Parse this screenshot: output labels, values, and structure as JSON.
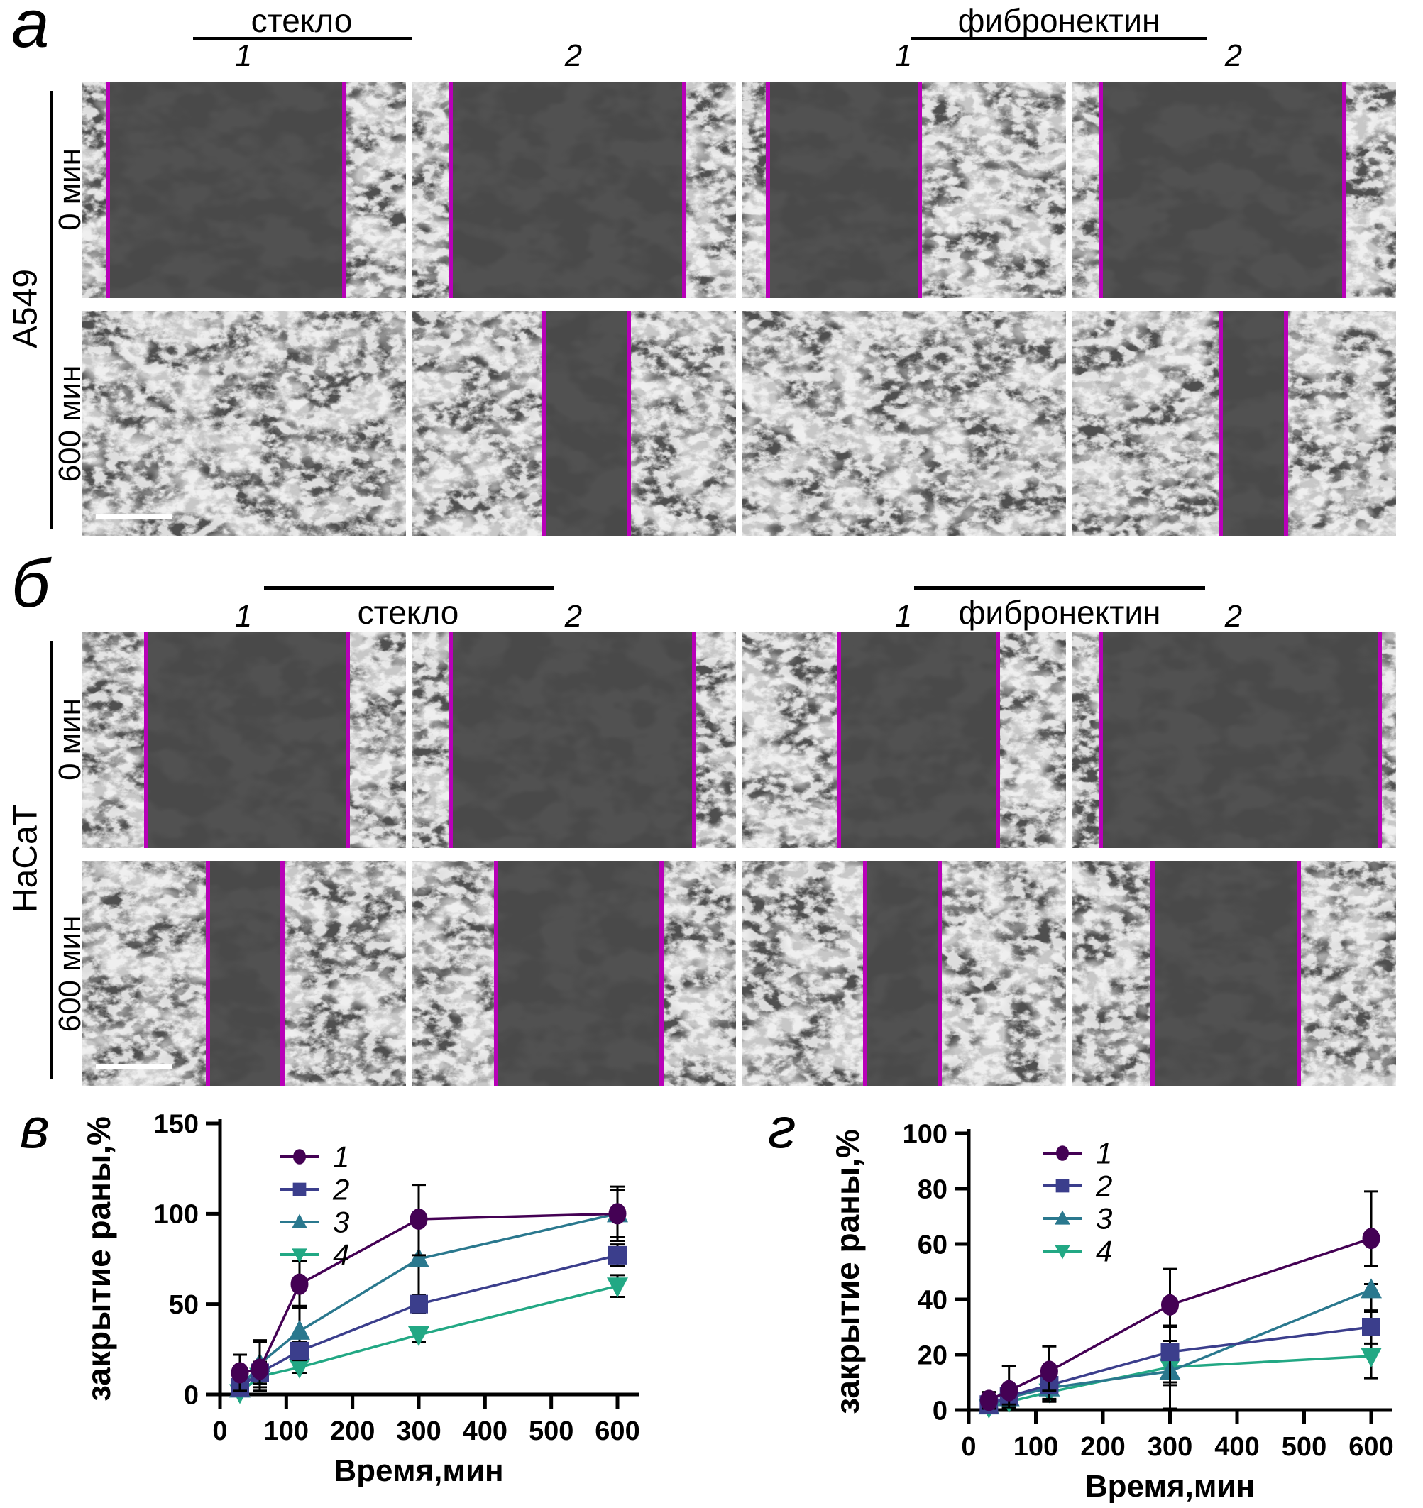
{
  "figure": {
    "panels": [
      {
        "id": "a",
        "label": "а",
        "cell_line": "A549",
        "groups": [
          {
            "label": "стекло"
          },
          {
            "label": "фибронектин"
          }
        ],
        "column_labels": [
          "1",
          "2",
          "1",
          "2"
        ],
        "row_labels": [
          "0 мин",
          "600 мин"
        ],
        "micrographs": [
          {
            "id": "a-glass-1-0min",
            "gap_pct": [
              8,
              81
            ],
            "scalebar": false
          },
          {
            "id": "a-glass-2-0min",
            "gap_pct": [
              12,
              84
            ],
            "scalebar": false
          },
          {
            "id": "a-fn-1-0min",
            "gap_pct": [
              8,
              55
            ],
            "scalebar": false
          },
          {
            "id": "a-fn-2-0min",
            "gap_pct": [
              9,
              84
            ],
            "scalebar": false
          },
          {
            "id": "a-glass-1-600min",
            "gap_pct": null,
            "scalebar": true
          },
          {
            "id": "a-glass-2-600min",
            "gap_pct": [
              41,
              67
            ],
            "scalebar": false
          },
          {
            "id": "a-fn-1-600min",
            "gap_pct": null,
            "scalebar": false
          },
          {
            "id": "a-fn-2-600min",
            "gap_pct": [
              46,
              66
            ],
            "scalebar": false
          }
        ]
      },
      {
        "id": "b",
        "label": "б",
        "cell_line": "HaCaT",
        "groups": [
          {
            "label": "стекло"
          },
          {
            "label": "фибронектин"
          }
        ],
        "column_labels": [
          "1",
          "2",
          "1",
          "2"
        ],
        "row_labels": [
          "0 мин",
          "600 мин"
        ],
        "micrographs": [
          {
            "id": "b-glass-1-0min",
            "gap_pct": [
              20,
              82
            ],
            "scalebar": false
          },
          {
            "id": "b-glass-2-0min",
            "gap_pct": [
              12,
              87
            ],
            "scalebar": false
          },
          {
            "id": "b-fn-1-0min",
            "gap_pct": [
              30,
              79
            ],
            "scalebar": false
          },
          {
            "id": "b-fn-2-0min",
            "gap_pct": [
              9,
              95
            ],
            "scalebar": false
          },
          {
            "id": "b-glass-1-600min",
            "gap_pct": [
              39,
              62
            ],
            "scalebar": true
          },
          {
            "id": "b-glass-2-600min",
            "gap_pct": [
              26,
              77
            ],
            "scalebar": false
          },
          {
            "id": "b-fn-1-600min",
            "gap_pct": [
              38,
              61
            ],
            "scalebar": false
          },
          {
            "id": "b-fn-2-600min",
            "gap_pct": [
              25,
              70
            ],
            "scalebar": false
          }
        ]
      }
    ]
  },
  "chart_data": [
    {
      "id": "v",
      "panel_label": "в",
      "type": "line",
      "xlabel": "Время,мин",
      "ylabel": "закрытие раны,%",
      "x": [
        30,
        60,
        120,
        300,
        600
      ],
      "xlim": [
        0,
        620
      ],
      "ylim": [
        0,
        150
      ],
      "xticks": [
        0,
        100,
        200,
        300,
        400,
        500,
        600
      ],
      "yticks": [
        0,
        50,
        100,
        150
      ],
      "grid": false,
      "legend_position": "top-left",
      "series": [
        {
          "name": "1",
          "marker": "circle",
          "color": "#440154",
          "y": [
            12,
            14,
            61,
            97,
            100
          ],
          "err_plus": [
            10,
            15,
            13,
            19,
            15
          ],
          "err_minus": [
            10,
            12,
            13,
            20,
            15
          ]
        },
        {
          "name": "2",
          "marker": "square",
          "color": "#3b3e8c",
          "y": [
            4,
            12,
            24,
            50,
            77
          ],
          "err_plus": [
            5,
            6,
            5,
            5,
            6
          ],
          "err_minus": [
            4,
            6,
            5,
            5,
            6
          ]
        },
        {
          "name": "3",
          "marker": "triangle-up",
          "color": "#2a788e",
          "y": [
            3,
            17,
            35,
            75,
            100
          ],
          "err_plus": [
            8,
            13,
            14,
            20,
            13
          ],
          "err_minus": [
            3,
            13,
            14,
            20,
            13
          ]
        },
        {
          "name": "4",
          "marker": "triangle-down",
          "color": "#22a884",
          "y": [
            1,
            10,
            15,
            33,
            60
          ],
          "err_plus": [
            3,
            8,
            3,
            4,
            6
          ],
          "err_minus": [
            1,
            8,
            3,
            4,
            6
          ]
        }
      ]
    },
    {
      "id": "g",
      "panel_label": "г",
      "type": "line",
      "xlabel": "Время,мин",
      "ylabel": "закрытие раны,%",
      "x": [
        30,
        60,
        120,
        300,
        600
      ],
      "xlim": [
        0,
        620
      ],
      "ylim": [
        0,
        100
      ],
      "xticks": [
        0,
        100,
        200,
        300,
        400,
        500,
        600
      ],
      "yticks": [
        0,
        20,
        40,
        60,
        80,
        100
      ],
      "grid": false,
      "legend_position": "top-left",
      "series": [
        {
          "name": "1",
          "marker": "circle",
          "color": "#440154",
          "y": [
            3.5,
            7,
            14,
            38,
            62
          ],
          "err_plus": [
            3,
            9,
            9,
            13,
            17
          ],
          "err_minus": [
            3,
            5,
            7,
            13,
            10
          ]
        },
        {
          "name": "2",
          "marker": "square",
          "color": "#3b3e8c",
          "y": [
            2,
            5,
            9,
            21,
            30
          ],
          "err_plus": [
            2,
            4,
            6,
            9,
            6
          ],
          "err_minus": [
            2,
            4,
            6,
            11,
            6
          ]
        },
        {
          "name": "3",
          "marker": "triangle-up",
          "color": "#2a788e",
          "y": [
            1.5,
            4.5,
            8,
            14,
            43.5
          ],
          "err_plus": [
            2,
            3,
            4,
            11,
            2
          ],
          "err_minus": [
            1.5,
            3,
            4,
            5,
            8
          ]
        },
        {
          "name": "4",
          "marker": "triangle-down",
          "color": "#22a884",
          "y": [
            1,
            3,
            6.5,
            15.5,
            19.5
          ],
          "err_plus": [
            1.5,
            2,
            3,
            15,
            8
          ],
          "err_minus": [
            1,
            2,
            3,
            15,
            8
          ]
        }
      ]
    }
  ],
  "colors": {
    "wound_marker": "#b800b8",
    "scalebar": "#ffffff",
    "error_bar": "#000000",
    "axis": "#000000",
    "series": [
      "#440154",
      "#3b3e8c",
      "#2a788e",
      "#22a884"
    ]
  }
}
